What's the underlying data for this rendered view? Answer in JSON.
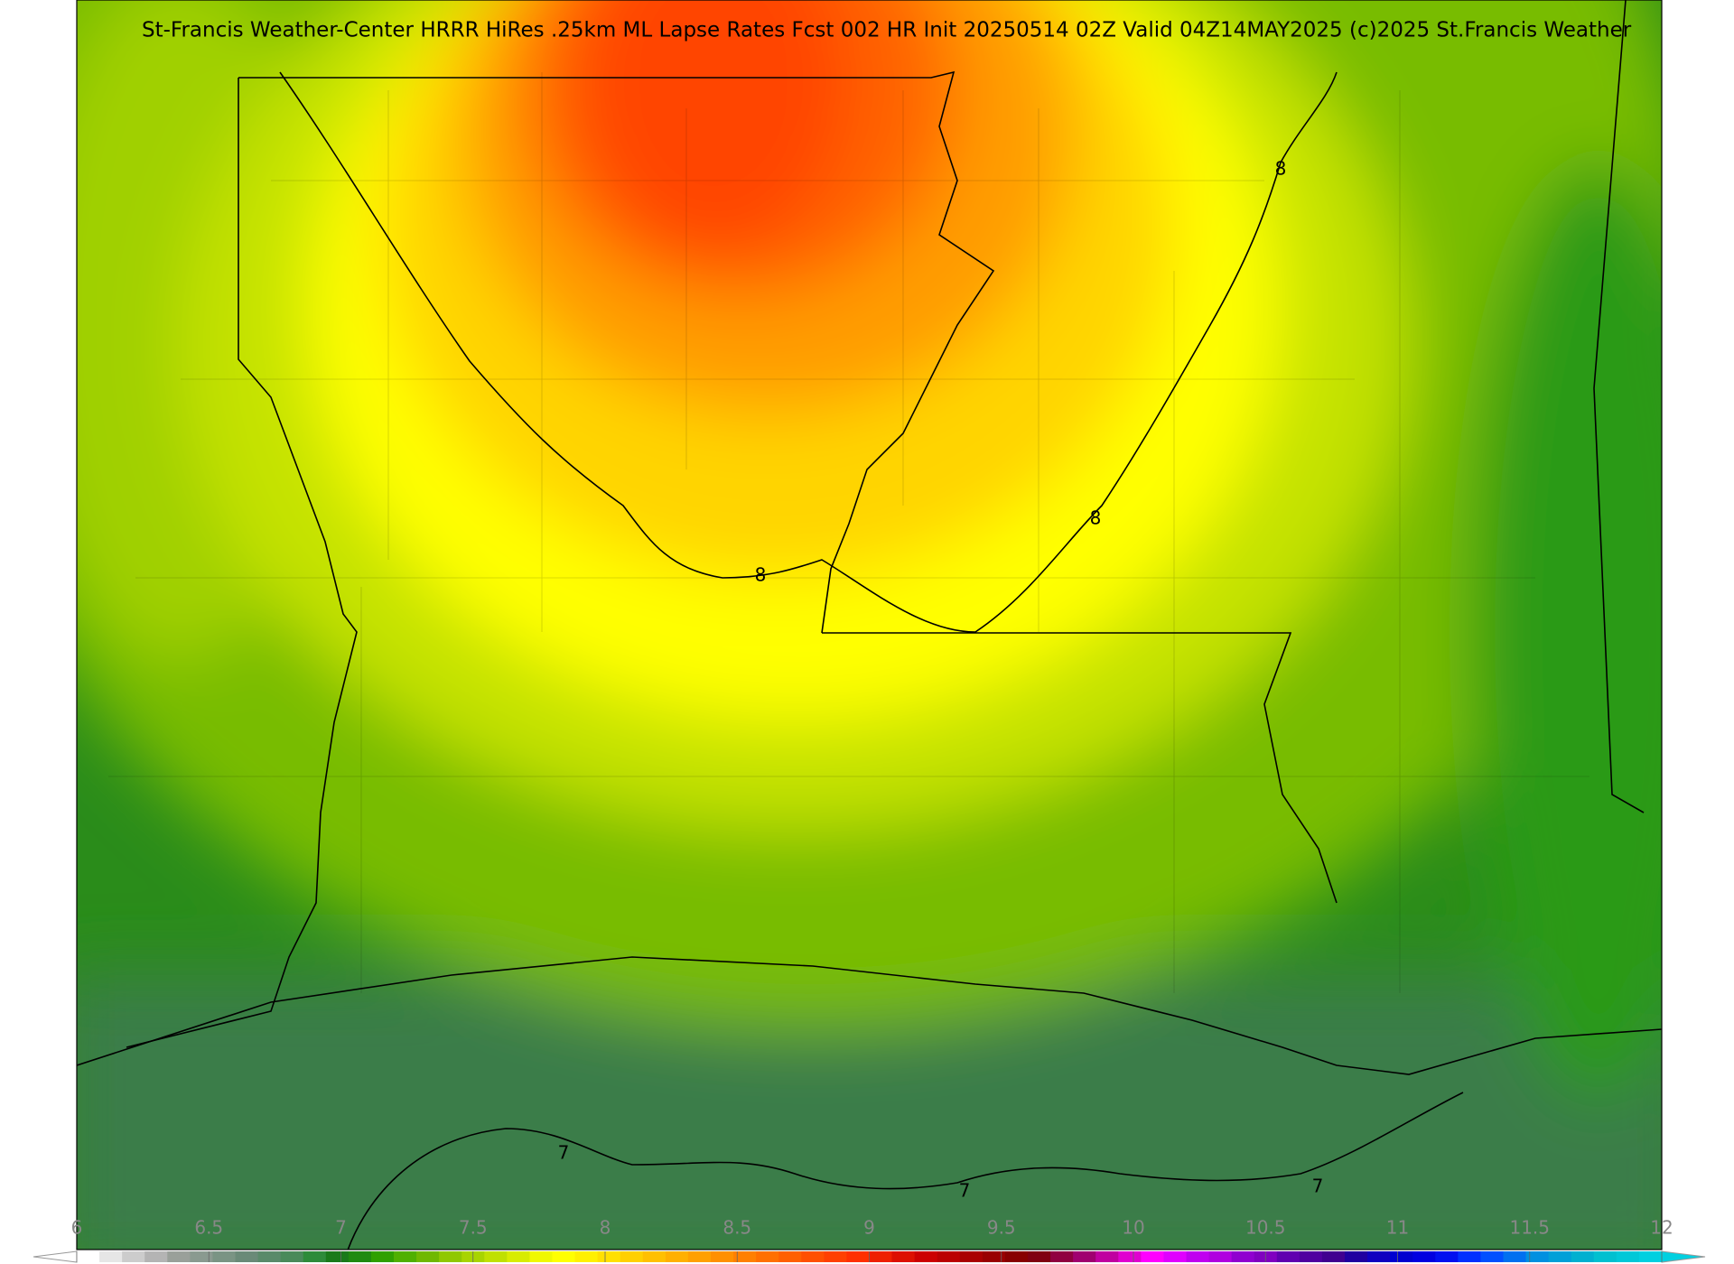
{
  "header": {
    "title": "St-Francis Weather-Center HRRR HiRes .25km ML Lapse Rates  Fcst 002 HR Init 20250514 02Z  Valid 04Z14MAY2025   (c)2025 St.Francis Weather"
  },
  "contour_labels": [
    "8",
    "8",
    "8",
    "7",
    "7",
    "7"
  ],
  "colorbar": {
    "min": 6,
    "max": 12,
    "ticks": [
      6,
      6.5,
      7,
      7.5,
      8,
      8.5,
      9,
      9.5,
      10,
      10.5,
      11,
      11.5,
      12
    ],
    "colors": [
      "#ffffff",
      "#e6e6e6",
      "#cccccc",
      "#b4b4b4",
      "#9aa09a",
      "#8a9a90",
      "#7a9484",
      "#6a8a78",
      "#5a8a6a",
      "#4a8a5a",
      "#2e8b3a",
      "#1a7a1a",
      "#208a10",
      "#30a000",
      "#50b000",
      "#70b800",
      "#90c800",
      "#a8d400",
      "#c0e000",
      "#d8ec00",
      "#f0f800",
      "#ffff00",
      "#fff000",
      "#ffe000",
      "#ffd000",
      "#ffc000",
      "#ffb000",
      "#ffa000",
      "#ff9000",
      "#ff8000",
      "#ff7000",
      "#ff6000",
      "#ff5000",
      "#ff4000",
      "#ff3000",
      "#ee2000",
      "#dd1000",
      "#cc0000",
      "#bb0000",
      "#aa0000",
      "#990000",
      "#880000",
      "#800010",
      "#900040",
      "#a00070",
      "#c000a0",
      "#e000d0",
      "#ff00ff",
      "#e000ff",
      "#c000f0",
      "#b000e0",
      "#9000d0",
      "#8000c0",
      "#6000b0",
      "#5000a0",
      "#400090",
      "#2000a0",
      "#1000c0",
      "#0000d0",
      "#0000e0",
      "#0010f0",
      "#0030ff",
      "#0050ff",
      "#0070f0",
      "#0090e0",
      "#00a0d8",
      "#00b0d0",
      "#00c0d0",
      "#00c8d8",
      "#00d0e0"
    ]
  }
}
